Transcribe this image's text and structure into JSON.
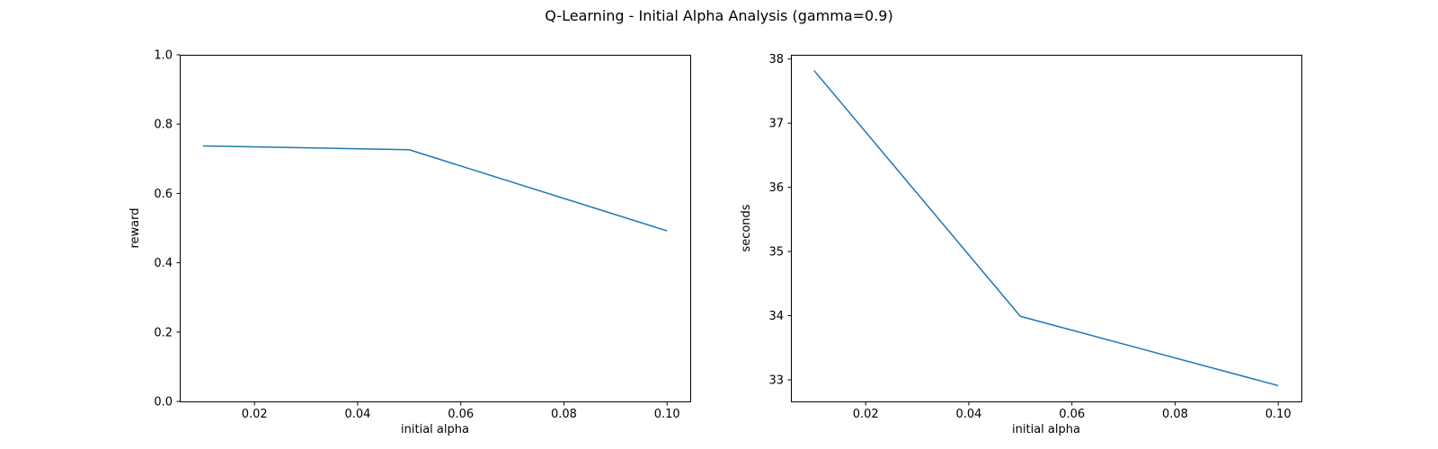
{
  "figure": {
    "title": "Q-Learning - Initial Alpha Analysis (gamma=0.9)"
  },
  "chart_data": [
    {
      "type": "line",
      "xlabel": "initial alpha",
      "ylabel": "reward",
      "x": [
        0.01,
        0.05,
        0.1
      ],
      "series": [
        {
          "values": [
            0.737,
            0.726,
            0.492
          ],
          "color": "#1f77b4"
        }
      ],
      "xlim": [
        0.0055,
        0.1045
      ],
      "ylim": [
        0.0,
        1.0
      ],
      "xticks": [
        "0.02",
        "0.04",
        "0.06",
        "0.08",
        "0.10"
      ],
      "yticks": [
        "0.0",
        "0.2",
        "0.4",
        "0.6",
        "0.8",
        "1.0"
      ],
      "grid": false
    },
    {
      "type": "line",
      "xlabel": "initial alpha",
      "ylabel": "seconds",
      "x": [
        0.01,
        0.05,
        0.1
      ],
      "series": [
        {
          "values": [
            37.82,
            33.99,
            32.91
          ],
          "color": "#1f77b4"
        }
      ],
      "xlim": [
        0.0055,
        0.1045
      ],
      "ylim": [
        32.664,
        38.066
      ],
      "xticks": [
        "0.02",
        "0.04",
        "0.06",
        "0.08",
        "0.10"
      ],
      "yticks": [
        "33",
        "34",
        "35",
        "36",
        "37",
        "38"
      ],
      "grid": false
    }
  ]
}
